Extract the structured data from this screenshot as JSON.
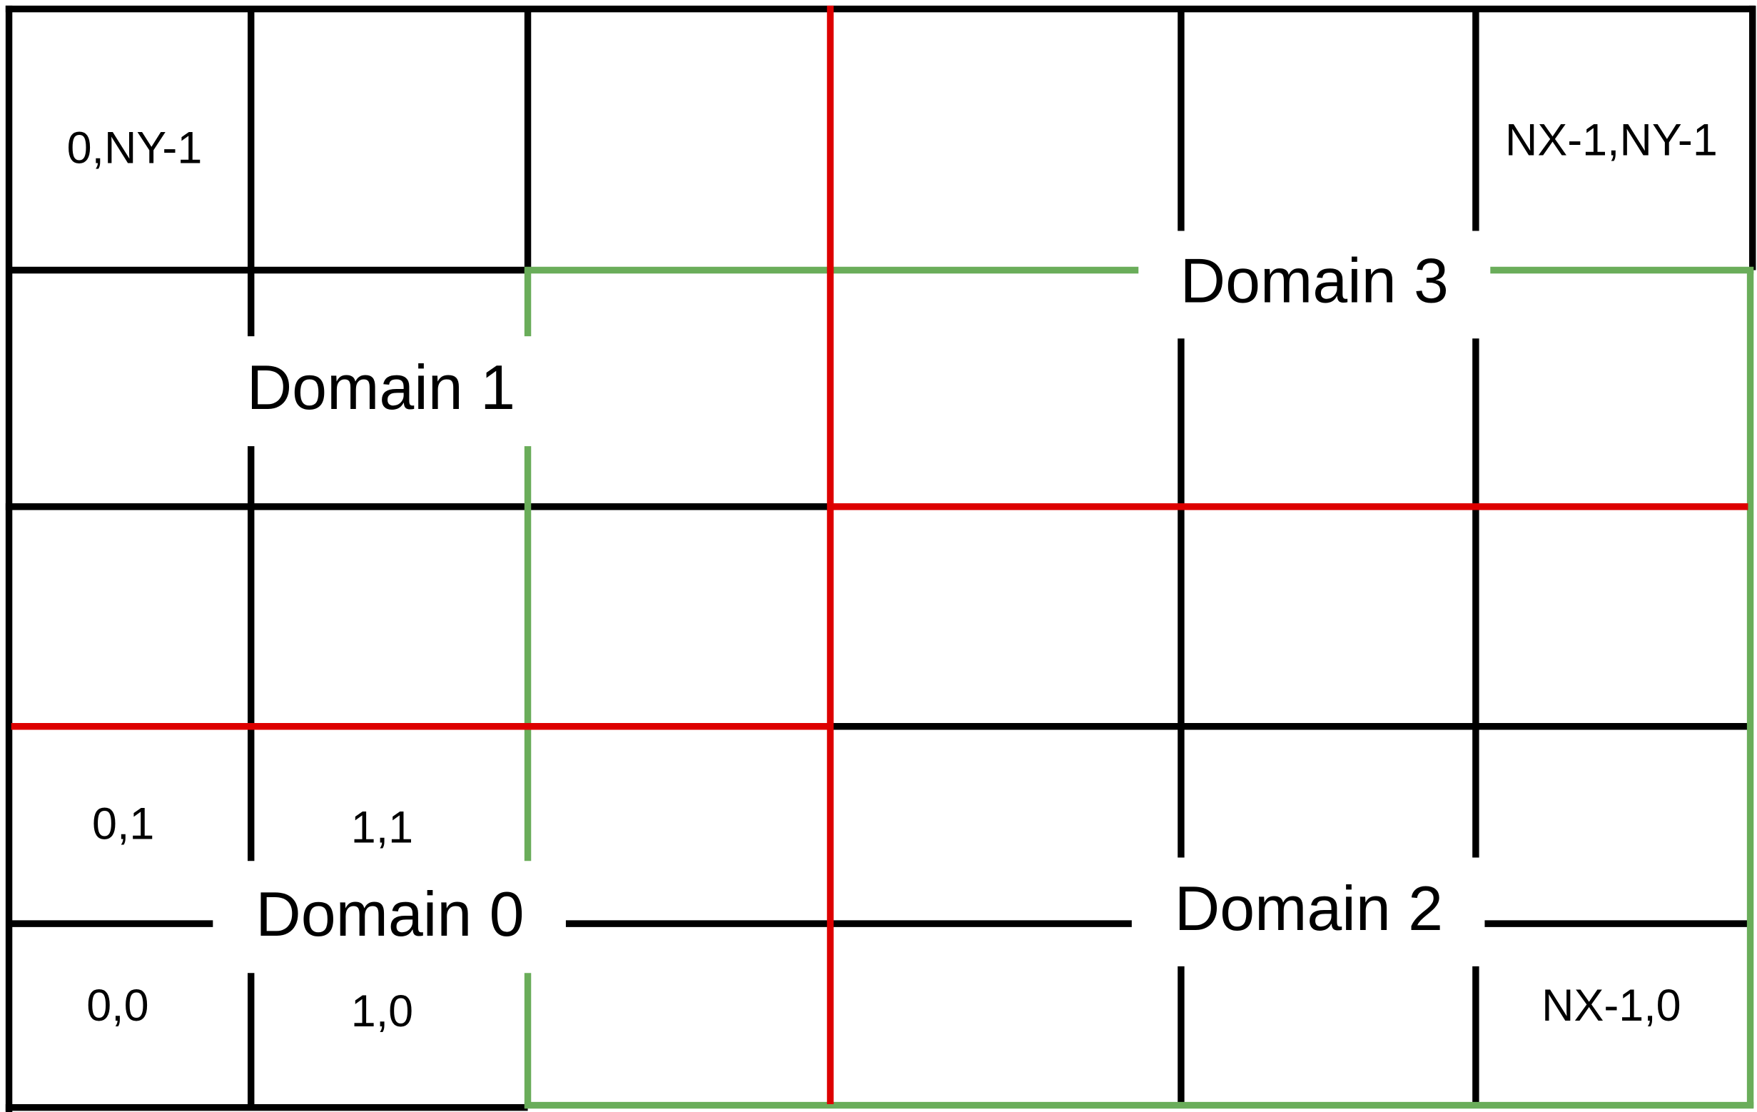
{
  "colors": {
    "grid": "#000000",
    "partition": "#dd0000",
    "domain_highlight": "#6aad5a"
  },
  "cells": {
    "top_left": "0,NY-1",
    "top_right": "NX-1,NY-1",
    "c01": "0,1",
    "c11": "1,1",
    "c00": "0,0",
    "c10": "1,0",
    "bottom_right": "NX-1,0"
  },
  "domains": [
    "Domain 0",
    "Domain 1",
    "Domain 2",
    "Domain 3"
  ]
}
